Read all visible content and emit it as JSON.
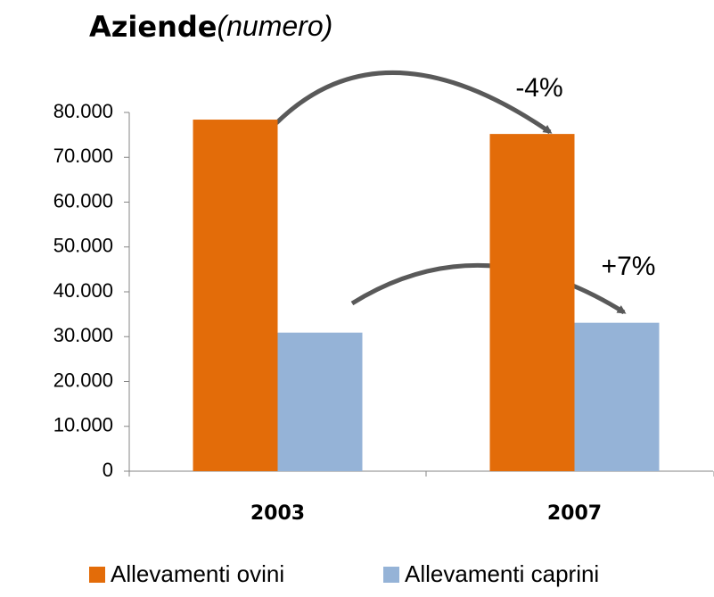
{
  "chart_data": {
    "type": "bar",
    "title": "Aziende",
    "subtitle": "(numero)",
    "categories": [
      "2003",
      "2007"
    ],
    "series": [
      {
        "name": "Allevamenti ovini",
        "color": "#e36c09",
        "values": [
          78400,
          75200
        ]
      },
      {
        "name": "Allevamenti caprini",
        "color": "#95b3d7",
        "values": [
          30900,
          33100
        ]
      }
    ],
    "ylim": [
      0,
      80000
    ],
    "yticks": [
      0,
      {
        "value": 10000,
        "label": "10.000"
      },
      {
        "value": 20000,
        "label": "20.000"
      },
      {
        "value": 30000,
        "label": "30.000"
      },
      {
        "value": 40000,
        "label": "40.000"
      },
      {
        "value": 50000,
        "label": "50.000"
      },
      {
        "value": 60000,
        "label": "60.000"
      },
      {
        "value": 70000,
        "label": "70.000"
      },
      {
        "value": 80000,
        "label": "80.000"
      }
    ],
    "annotations": [
      "-4%",
      "+7%"
    ],
    "legend": "bottom"
  }
}
